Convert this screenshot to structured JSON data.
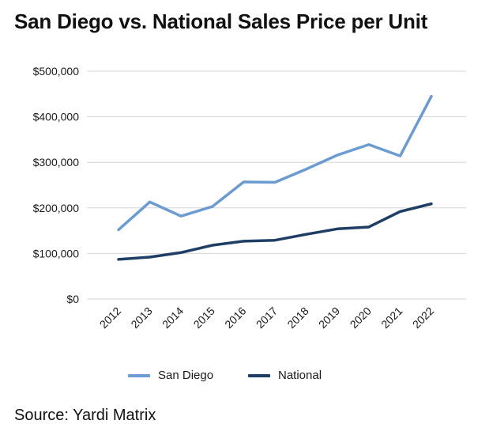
{
  "title": "San Diego vs. National Sales Price per Unit",
  "source": "Source: Yardi Matrix",
  "colors": {
    "san_diego": "#6b9bd1",
    "national": "#1f3e66",
    "grid": "#d6d6d6"
  },
  "chart_data": {
    "type": "line",
    "title": "San Diego vs. National Sales Price per Unit",
    "xlabel": "",
    "ylabel": "",
    "ylim": [
      0,
      500000
    ],
    "grid": true,
    "legend_position": "bottom-center",
    "categories": [
      "2012",
      "2013",
      "2014",
      "2015",
      "2016",
      "2017",
      "2018",
      "2019",
      "2020",
      "2021",
      "2022"
    ],
    "y_ticks": [
      0,
      100000,
      200000,
      300000,
      400000,
      500000
    ],
    "y_tick_labels": [
      "$0",
      "$100,000",
      "$200,000",
      "$300,000",
      "$400,000",
      "$500,000"
    ],
    "series": [
      {
        "name": "San Diego",
        "color": "#6b9bd1",
        "values": [
          152000,
          213000,
          182000,
          203000,
          257000,
          256000,
          285000,
          316000,
          339000,
          314000,
          445000
        ]
      },
      {
        "name": "National",
        "color": "#1f3e66",
        "values": [
          87000,
          92000,
          102000,
          118000,
          127000,
          129000,
          142000,
          154000,
          158000,
          192000,
          209000
        ]
      }
    ]
  }
}
